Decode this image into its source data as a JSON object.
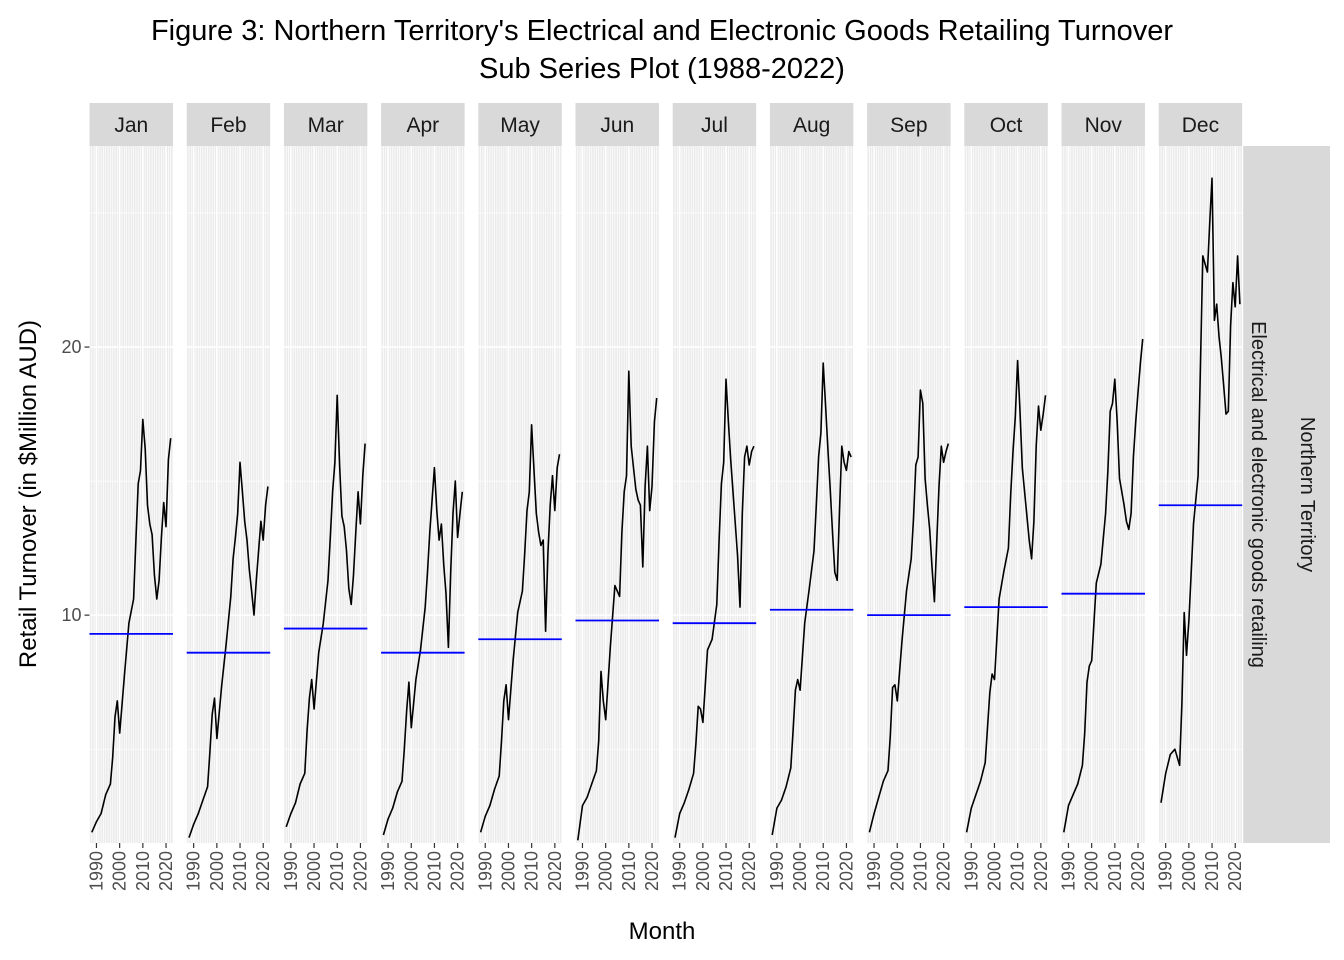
{
  "title_line1": "Figure 3: Northern Territory's Electrical and Electronic Goods Retailing Turnover",
  "title_line2": "Sub Series Plot (1988-2022)",
  "colors": {
    "panel_bg": "#ebebeb",
    "grid": "#ffffff",
    "strip_bg": "#d9d9d9",
    "line": "#000000",
    "mean": "#0000ff"
  },
  "chart_data": {
    "type": "line",
    "xlabel": "Month",
    "ylabel": "Retail Turnover (in $Million AUD)",
    "ylim": [
      1.5,
      27.5
    ],
    "y_ticks": [
      10,
      20
    ],
    "x_range": [
      1987,
      2023
    ],
    "x_ticks": [
      1990,
      2000,
      2010,
      2020
    ],
    "grid": true,
    "facet_right_labels": [
      "Northern Territory",
      "Electrical and electronic goods retailing"
    ],
    "facets": [
      {
        "month": "Jan",
        "mean": 9.3,
        "years": [
          1988,
          1990,
          1992,
          1994,
          1996,
          1997,
          1998,
          1999,
          2000,
          2002,
          2004,
          2006,
          2007,
          2008,
          2009,
          2010,
          2011,
          2012,
          2013,
          2014,
          2015,
          2016,
          2017,
          2018,
          2019,
          2020,
          2021,
          2022
        ],
        "values": [
          1.9,
          2.3,
          2.6,
          3.3,
          3.7,
          4.7,
          6.2,
          6.8,
          5.6,
          7.7,
          9.7,
          10.6,
          12.8,
          14.9,
          15.4,
          17.3,
          16.2,
          14.1,
          13.4,
          13.0,
          11.5,
          10.6,
          11.3,
          12.9,
          14.2,
          13.3,
          15.8,
          16.6
        ]
      },
      {
        "month": "Feb",
        "mean": 8.6,
        "years": [
          1988,
          1990,
          1992,
          1994,
          1996,
          1997,
          1998,
          1999,
          2000,
          2002,
          2004,
          2006,
          2007,
          2008,
          2009,
          2010,
          2011,
          2012,
          2013,
          2014,
          2015,
          2016,
          2017,
          2018,
          2019,
          2020,
          2021,
          2022
        ],
        "values": [
          1.7,
          2.2,
          2.6,
          3.1,
          3.6,
          4.9,
          6.3,
          6.9,
          5.4,
          7.3,
          8.9,
          10.7,
          12.1,
          12.9,
          13.8,
          15.7,
          14.6,
          13.5,
          12.8,
          11.7,
          10.9,
          10.0,
          11.3,
          12.4,
          13.5,
          12.8,
          14.1,
          14.8
        ]
      },
      {
        "month": "Mar",
        "mean": 9.5,
        "years": [
          1988,
          1990,
          1992,
          1994,
          1996,
          1997,
          1998,
          1999,
          2000,
          2002,
          2004,
          2006,
          2007,
          2008,
          2009,
          2010,
          2011,
          2012,
          2013,
          2014,
          2015,
          2016,
          2017,
          2018,
          2019,
          2020,
          2021,
          2022
        ],
        "values": [
          2.1,
          2.6,
          3.0,
          3.7,
          4.1,
          5.7,
          6.9,
          7.6,
          6.5,
          8.6,
          9.7,
          11.3,
          12.9,
          14.6,
          15.7,
          18.2,
          15.6,
          13.7,
          13.3,
          12.4,
          11.0,
          10.4,
          11.5,
          13.1,
          14.6,
          13.4,
          15.2,
          16.4
        ]
      },
      {
        "month": "Apr",
        "mean": 8.6,
        "years": [
          1988,
          1990,
          1992,
          1994,
          1996,
          1997,
          1998,
          1999,
          2000,
          2002,
          2004,
          2006,
          2007,
          2008,
          2009,
          2010,
          2011,
          2012,
          2013,
          2014,
          2015,
          2016,
          2017,
          2018,
          2019,
          2020,
          2021,
          2022
        ],
        "values": [
          1.8,
          2.4,
          2.8,
          3.4,
          3.8,
          5.0,
          6.4,
          7.5,
          5.8,
          7.6,
          8.7,
          10.3,
          11.6,
          13.1,
          14.3,
          15.5,
          13.9,
          12.8,
          13.4,
          11.9,
          10.8,
          8.8,
          11.6,
          13.8,
          15.0,
          12.9,
          13.8,
          14.6
        ]
      },
      {
        "month": "May",
        "mean": 9.1,
        "years": [
          1988,
          1990,
          1992,
          1994,
          1996,
          1997,
          1998,
          1999,
          2000,
          2002,
          2004,
          2006,
          2007,
          2008,
          2009,
          2010,
          2011,
          2012,
          2013,
          2014,
          2015,
          2016,
          2017,
          2018,
          2019,
          2020,
          2021,
          2022
        ],
        "values": [
          1.9,
          2.5,
          2.9,
          3.5,
          4.0,
          5.3,
          6.8,
          7.4,
          6.1,
          8.3,
          10.1,
          10.9,
          12.3,
          13.9,
          14.6,
          17.1,
          15.4,
          13.8,
          13.1,
          12.6,
          12.8,
          9.4,
          12.3,
          14.1,
          15.2,
          13.9,
          15.5,
          16.0
        ]
      },
      {
        "month": "Jun",
        "mean": 9.8,
        "years": [
          1988,
          1990,
          1992,
          1994,
          1996,
          1997,
          1998,
          1999,
          2000,
          2002,
          2004,
          2006,
          2007,
          2008,
          2009,
          2010,
          2011,
          2012,
          2013,
          2014,
          2015,
          2016,
          2017,
          2018,
          2019,
          2020,
          2021,
          2022
        ],
        "values": [
          1.6,
          2.9,
          3.2,
          3.7,
          4.2,
          5.3,
          7.9,
          6.8,
          6.1,
          8.8,
          11.1,
          10.7,
          13.1,
          14.6,
          15.2,
          19.1,
          16.3,
          15.5,
          14.7,
          14.3,
          14.1,
          11.8,
          14.8,
          16.3,
          13.9,
          14.8,
          17.2,
          18.1
        ]
      },
      {
        "month": "Jul",
        "mean": 9.7,
        "years": [
          1988,
          1990,
          1992,
          1994,
          1996,
          1997,
          1998,
          1999,
          2000,
          2002,
          2004,
          2006,
          2007,
          2008,
          2009,
          2010,
          2011,
          2012,
          2013,
          2014,
          2015,
          2016,
          2017,
          2018,
          2019,
          2020,
          2021,
          2022
        ],
        "values": [
          1.7,
          2.6,
          3.0,
          3.5,
          4.1,
          5.2,
          6.6,
          6.5,
          6.0,
          8.7,
          9.1,
          10.4,
          12.8,
          14.9,
          15.7,
          18.8,
          17.2,
          15.8,
          14.6,
          13.4,
          12.2,
          10.3,
          13.8,
          15.9,
          16.3,
          15.6,
          16.1,
          16.3
        ]
      },
      {
        "month": "Aug",
        "mean": 10.2,
        "years": [
          1988,
          1990,
          1992,
          1994,
          1996,
          1997,
          1998,
          1999,
          2000,
          2002,
          2004,
          2006,
          2007,
          2008,
          2009,
          2010,
          2011,
          2012,
          2013,
          2014,
          2015,
          2016,
          2017,
          2018,
          2019,
          2020,
          2021,
          2022
        ],
        "values": [
          1.8,
          2.8,
          3.1,
          3.6,
          4.3,
          5.7,
          7.2,
          7.6,
          7.2,
          9.7,
          11.0,
          12.4,
          14.1,
          15.9,
          16.8,
          19.4,
          17.8,
          16.2,
          14.7,
          13.1,
          11.6,
          11.3,
          13.9,
          16.3,
          15.7,
          15.4,
          16.1,
          15.9
        ]
      },
      {
        "month": "Sep",
        "mean": 10.0,
        "years": [
          1988,
          1990,
          1992,
          1994,
          1996,
          1997,
          1998,
          1999,
          2000,
          2002,
          2004,
          2006,
          2007,
          2008,
          2009,
          2010,
          2011,
          2012,
          2013,
          2014,
          2015,
          2016,
          2017,
          2018,
          2019,
          2020,
          2021,
          2022
        ],
        "values": [
          1.9,
          2.6,
          3.2,
          3.8,
          4.2,
          5.5,
          7.3,
          7.4,
          6.8,
          9.0,
          10.9,
          12.1,
          13.6,
          15.6,
          15.9,
          18.4,
          17.9,
          15.1,
          14.1,
          13.2,
          11.8,
          10.5,
          12.7,
          14.8,
          16.3,
          15.7,
          16.1,
          16.4
        ]
      },
      {
        "month": "Oct",
        "mean": 10.3,
        "years": [
          1988,
          1990,
          1992,
          1994,
          1996,
          1997,
          1998,
          1999,
          2000,
          2002,
          2004,
          2006,
          2007,
          2008,
          2009,
          2010,
          2011,
          2012,
          2013,
          2014,
          2015,
          2016,
          2017,
          2018,
          2019,
          2020,
          2021,
          2022
        ],
        "values": [
          1.9,
          2.8,
          3.3,
          3.8,
          4.5,
          5.8,
          7.1,
          7.8,
          7.6,
          10.6,
          11.6,
          12.5,
          14.5,
          16.1,
          17.4,
          19.5,
          17.6,
          15.5,
          14.6,
          13.7,
          12.8,
          12.1,
          13.5,
          16.3,
          17.8,
          16.9,
          17.5,
          18.2
        ]
      },
      {
        "month": "Nov",
        "mean": 10.8,
        "years": [
          1988,
          1990,
          1992,
          1994,
          1996,
          1997,
          1998,
          1999,
          2000,
          2002,
          2004,
          2006,
          2007,
          2008,
          2009,
          2010,
          2011,
          2012,
          2013,
          2014,
          2015,
          2016,
          2017,
          2018,
          2019,
          2020,
          2021,
          2022
        ],
        "values": [
          1.9,
          2.9,
          3.3,
          3.7,
          4.4,
          5.6,
          7.5,
          8.1,
          8.3,
          11.2,
          11.9,
          13.8,
          15.4,
          17.6,
          17.9,
          18.8,
          17.2,
          15.1,
          14.6,
          14.1,
          13.5,
          13.2,
          13.8,
          15.9,
          17.2,
          18.3,
          19.4,
          20.3
        ]
      },
      {
        "month": "Dec",
        "mean": 14.1,
        "years": [
          1988,
          1990,
          1992,
          1994,
          1996,
          1997,
          1998,
          1999,
          2000,
          2002,
          2004,
          2006,
          2007,
          2008,
          2009,
          2010,
          2011,
          2012,
          2013,
          2014,
          2015,
          2016,
          2017,
          2018,
          2019,
          2020,
          2021,
          2022
        ],
        "values": [
          3.0,
          4.1,
          4.8,
          5.0,
          4.4,
          6.7,
          10.1,
          8.5,
          9.8,
          13.4,
          15.2,
          23.4,
          23.1,
          22.8,
          24.6,
          26.3,
          21.0,
          21.6,
          20.4,
          19.6,
          18.6,
          17.5,
          17.6,
          20.8,
          22.4,
          21.5,
          23.4,
          21.6
        ]
      }
    ]
  }
}
